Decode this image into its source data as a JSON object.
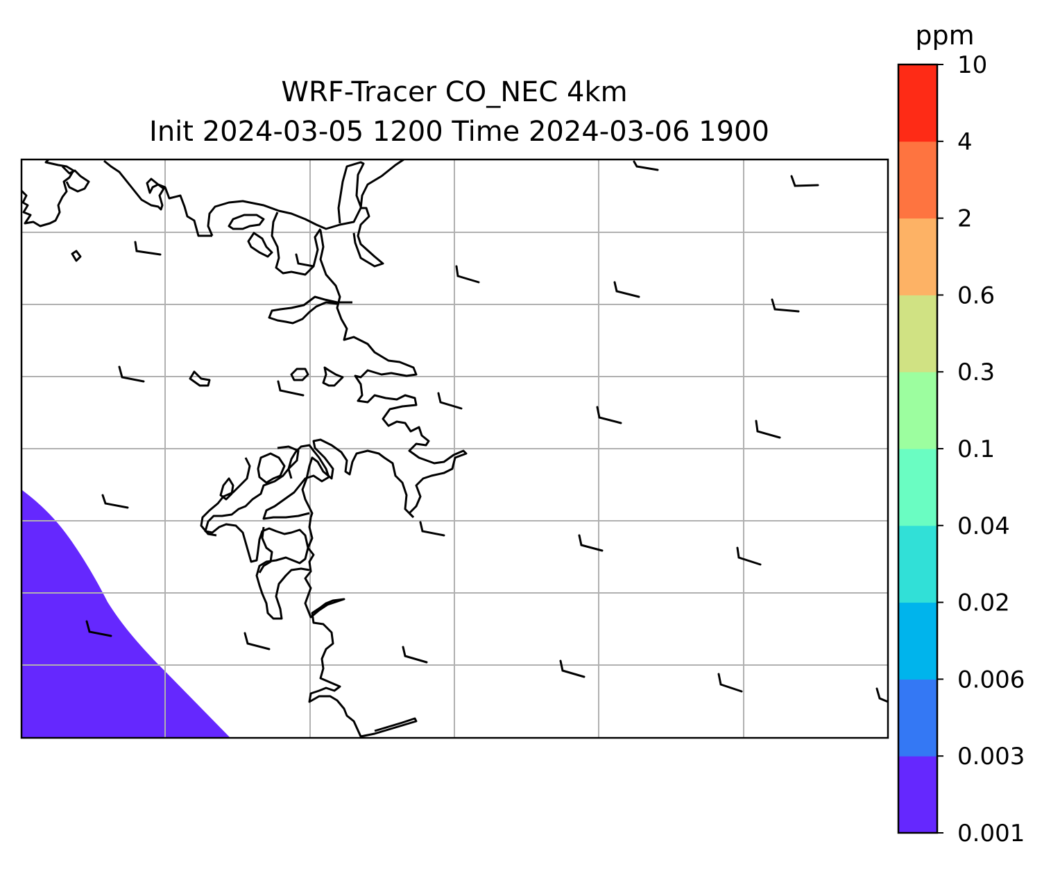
{
  "chart_data": {
    "type": "map",
    "title_line1": "WRF-Tracer CO_NEC 4km",
    "title_line2": "Init 2024-03-05 1200 Time 2024-03-06 1900",
    "colorbar": {
      "unit": "ppm",
      "levels": [
        "0.001",
        "0.003",
        "0.006",
        "0.02",
        "0.04",
        "0.1",
        "0.3",
        "0.6",
        "2",
        "4",
        "10"
      ],
      "colors": [
        "#6528fe",
        "#3478f4",
        "#00b4ec",
        "#31e0d7",
        "#6afdc2",
        "#9cfe9f",
        "#d0e283",
        "#fdb265",
        "#fe7440",
        "#fe2b16"
      ]
    },
    "filled_region": {
      "level_color": "#6528fe",
      "location": "bottom-left"
    },
    "grid": true,
    "wind_barbs": true,
    "coastline_color": "#000000",
    "grid_color": "#b0b0b0"
  }
}
